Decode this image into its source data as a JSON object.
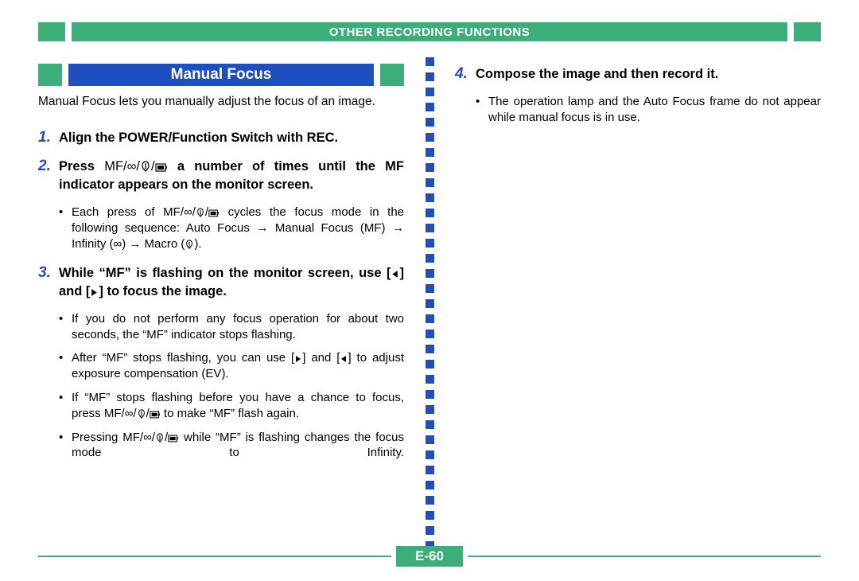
{
  "colors": {
    "green": "#3bae7a",
    "blue": "#1f4fbf",
    "text": "#000000",
    "bg": "#ffffff"
  },
  "header": {
    "title": "OTHER RECORDING FUNCTIONS",
    "fontsize": 15
  },
  "section": {
    "title": "Manual Focus",
    "fontsize": 19
  },
  "intro": "Manual Focus lets you manually adjust the focus of an image.",
  "steps": {
    "s1": {
      "num": "1.",
      "text": "Align the POWER/Function Switch with REC."
    },
    "s2": {
      "num": "2.",
      "pre": "Press ",
      "post": " a number of times until the MF indicator appears on the monitor screen.",
      "bullet1_pre": "Each press of ",
      "bullet1_mid": " cycles the focus mode in the following sequence: Auto Focus ",
      "bullet1_mf": " Manual Focus (",
      "bullet1_mf2": ") ",
      "bullet1_inf": " Infinity (",
      "bullet1_inf2": ") ",
      "bullet1_mac": " Macro (",
      "bullet1_end": ")."
    },
    "s3": {
      "num": "3.",
      "pre": "While “",
      "mid": "” is flashing on the monitor screen, use [",
      "mid2": "] and [",
      "post": "] to focus the image.",
      "b1_a": "If you do not perform any focus operation for about two seconds, the “",
      "b1_b": "” indicator stops flashing.",
      "b2_a": "After “",
      "b2_b": "” stops flashing, you can use [",
      "b2_c": "] and [",
      "b2_d": "] to adjust exposure compensation (EV).",
      "b3_a": "If “",
      "b3_b": "” stops flashing before you have a chance to focus, press ",
      "b3_c": " to make “",
      "b3_d": "” flash again.",
      "b4_a": "Pressing  ",
      "b4_b": " while “",
      "b4_c": "” is flashing changes the focus mode to Infinity."
    },
    "s4": {
      "num": "4.",
      "text": "Compose the image and then record it.",
      "b1": "The operation lamp and the Auto Focus frame do not appear while manual focus is in use."
    }
  },
  "glyphs": {
    "mf": "MF",
    "infinity": "∞",
    "slash": "/",
    "arrow_right_seq": "→"
  },
  "divider": {
    "square_count": 33,
    "square_color": "#1f4fbf",
    "square_size": 11,
    "gap": 8
  },
  "footer": {
    "page": "E-60"
  }
}
